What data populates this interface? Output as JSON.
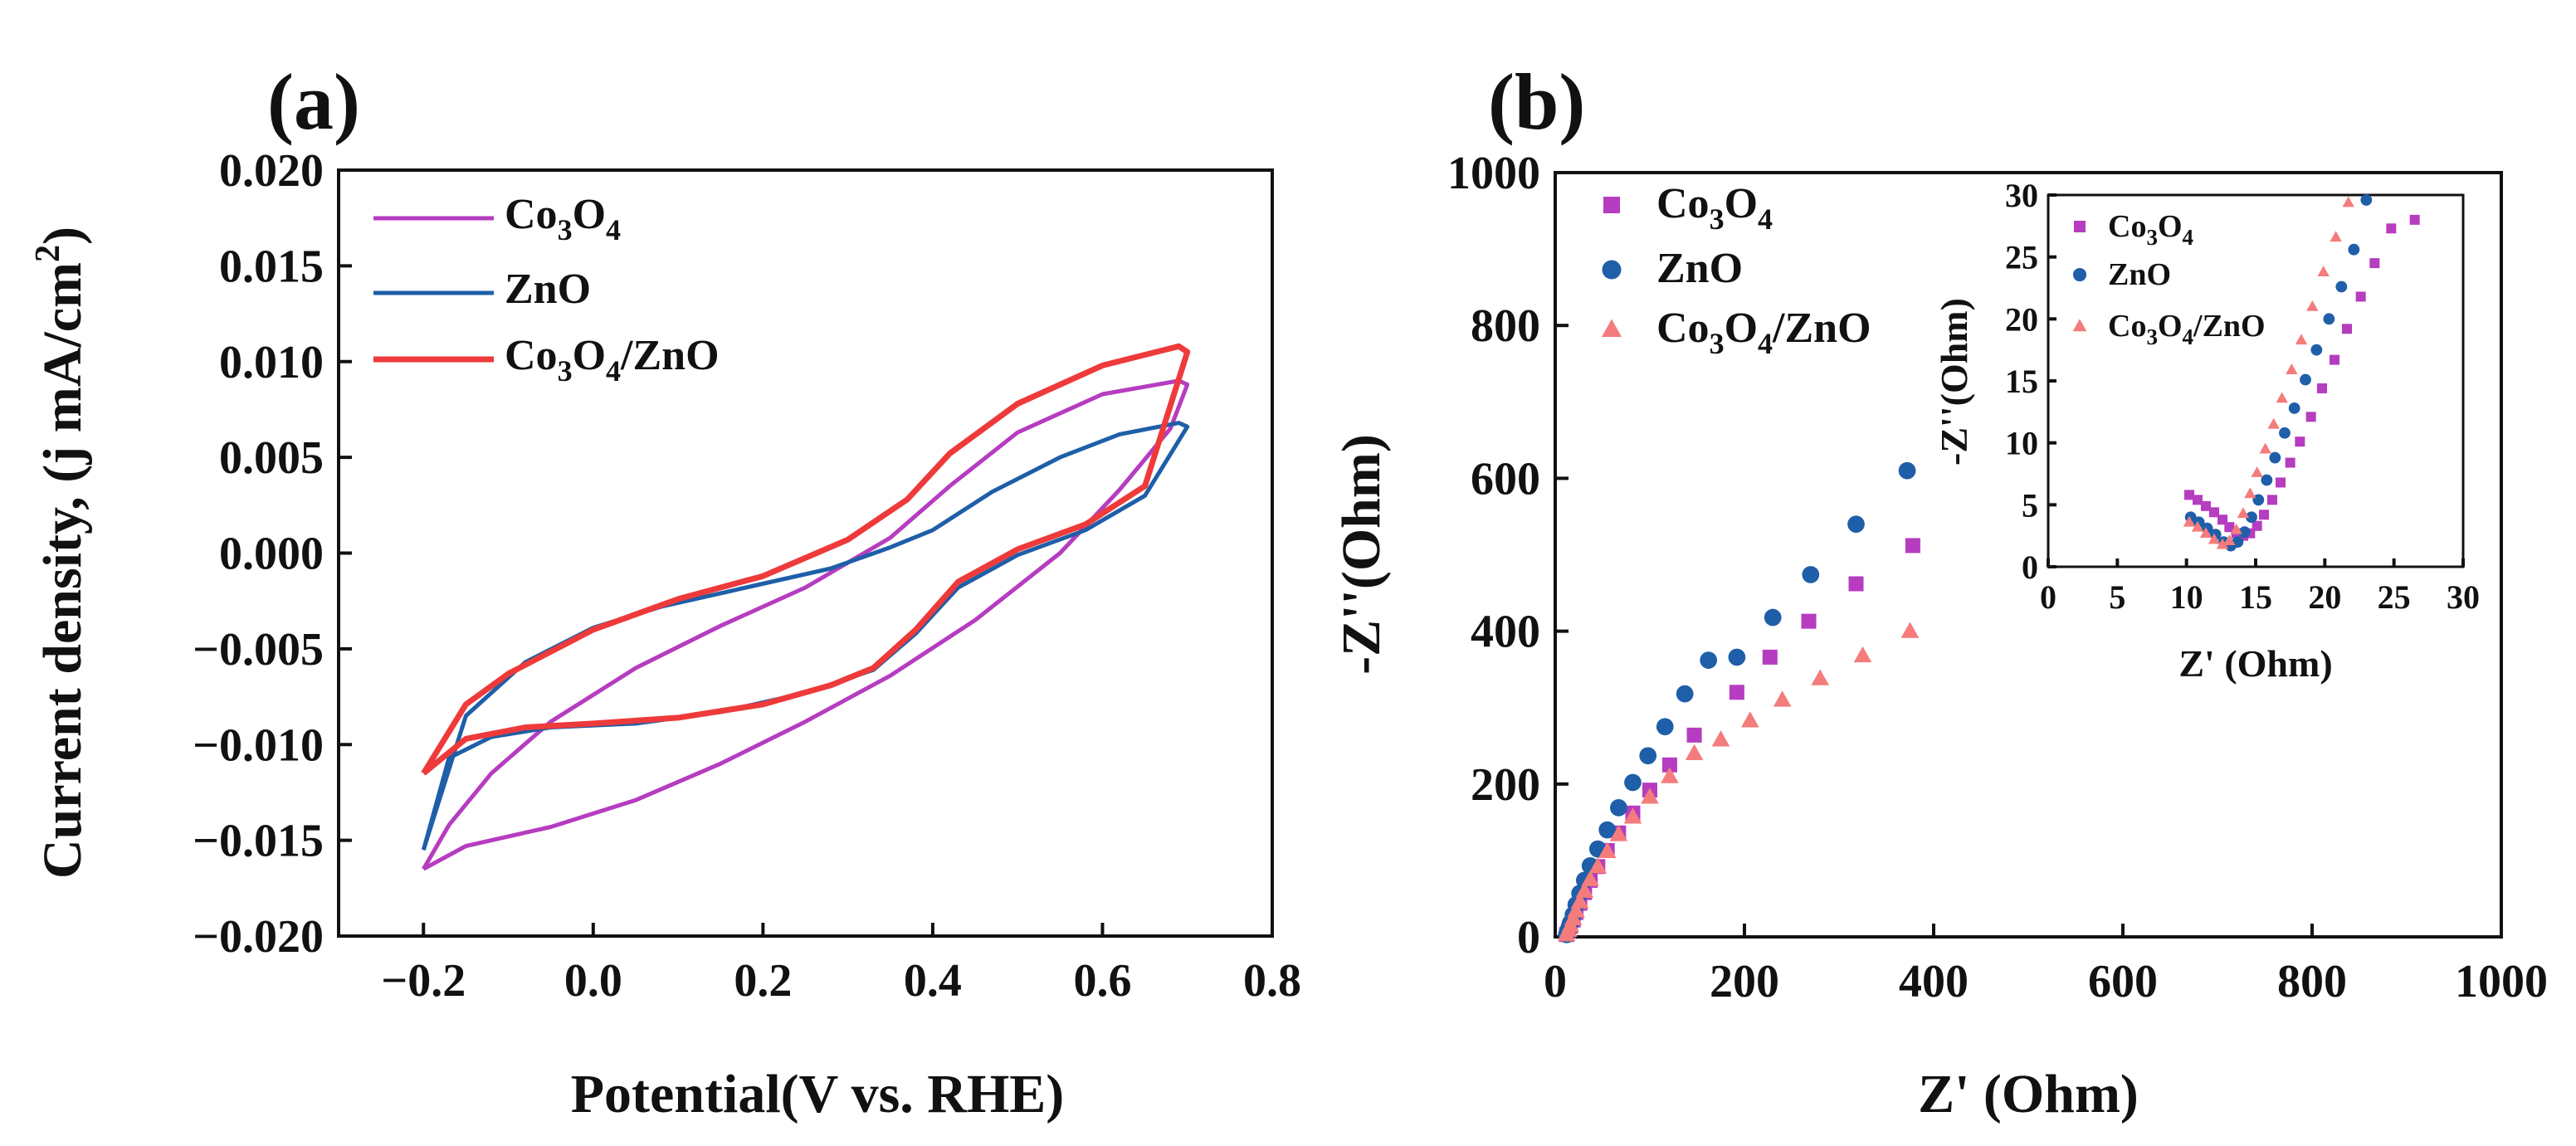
{
  "chart_data": [
    {
      "panel": "(a)",
      "type": "line",
      "title": "",
      "xlabel": "Potential(V vs. RHE)",
      "ylabel": "Current density, (j mA/cm2)",
      "ylabel_parts": [
        "Current density, (j mA/cm",
        "2",
        ")"
      ],
      "xlim": [
        -0.3,
        0.8
      ],
      "ylim": [
        -0.02,
        0.02
      ],
      "xticks": [
        -0.2,
        0.0,
        0.2,
        0.4,
        0.6,
        0.8
      ],
      "xtick_labels": [
        "−0.2",
        "0.0",
        "0.2",
        "0.4",
        "0.6",
        "0.8"
      ],
      "yticks": [
        -0.02,
        -0.015,
        -0.01,
        -0.005,
        0.0,
        0.005,
        0.01,
        0.015,
        0.02
      ],
      "ytick_labels": [
        "−0.020",
        "−0.015",
        "−0.010",
        "−0.005",
        "0.000",
        "0.005",
        "0.010",
        "0.015",
        "0.020"
      ],
      "legend_position": "top-left",
      "series": [
        {
          "name": "Co3O4",
          "parts": [
            [
              "Co",
              0
            ],
            [
              "3",
              1
            ],
            [
              "O",
              0
            ],
            [
              "4",
              1
            ]
          ],
          "color": "#b63cc0",
          "points": [
            [
              -0.2,
              -0.0165
            ],
            [
              -0.15,
              -0.0153
            ],
            [
              -0.05,
              -0.0143
            ],
            [
              0.05,
              -0.0129
            ],
            [
              0.15,
              -0.011
            ],
            [
              0.25,
              -0.0088
            ],
            [
              0.35,
              -0.0064
            ],
            [
              0.45,
              -0.0035
            ],
            [
              0.55,
              0.0
            ],
            [
              0.62,
              0.0033
            ],
            [
              0.68,
              0.0065
            ],
            [
              0.7,
              0.0088
            ],
            [
              0.69,
              0.009
            ],
            [
              0.6,
              0.0083
            ],
            [
              0.5,
              0.0063
            ],
            [
              0.42,
              0.0035
            ],
            [
              0.35,
              0.0008
            ],
            [
              0.25,
              -0.0018
            ],
            [
              0.15,
              -0.0038
            ],
            [
              0.05,
              -0.006
            ],
            [
              -0.05,
              -0.0088
            ],
            [
              -0.12,
              -0.0115
            ],
            [
              -0.17,
              -0.0142
            ],
            [
              -0.2,
              -0.0165
            ]
          ]
        },
        {
          "name": "ZnO",
          "parts": [
            [
              "ZnO",
              0
            ]
          ],
          "color": "#1f5ea8",
          "points": [
            [
              -0.2,
              -0.0155
            ],
            [
              -0.17,
              -0.0107
            ],
            [
              -0.12,
              -0.0096
            ],
            [
              -0.05,
              -0.0091
            ],
            [
              0.05,
              -0.0089
            ],
            [
              0.15,
              -0.0083
            ],
            [
              0.25,
              -0.0073
            ],
            [
              0.33,
              -0.0061
            ],
            [
              0.38,
              -0.0042
            ],
            [
              0.43,
              -0.0018
            ],
            [
              0.5,
              -0.0001
            ],
            [
              0.58,
              0.0012
            ],
            [
              0.65,
              0.003
            ],
            [
              0.7,
              0.0066
            ],
            [
              0.69,
              0.0068
            ],
            [
              0.62,
              0.0062
            ],
            [
              0.55,
              0.005
            ],
            [
              0.47,
              0.0032
            ],
            [
              0.4,
              0.0012
            ],
            [
              0.35,
              0.0003
            ],
            [
              0.28,
              -0.0008
            ],
            [
              0.18,
              -0.0018
            ],
            [
              0.08,
              -0.0028
            ],
            [
              0.0,
              -0.0039
            ],
            [
              -0.08,
              -0.0057
            ],
            [
              -0.15,
              -0.0085
            ],
            [
              -0.2,
              -0.0155
            ]
          ]
        },
        {
          "name": "Co3O4/ZnO",
          "parts": [
            [
              "Co",
              0
            ],
            [
              "3",
              1
            ],
            [
              "O",
              0
            ],
            [
              "4",
              1
            ],
            [
              "/ZnO",
              0
            ]
          ],
          "color": "#ee3a3a",
          "points": [
            [
              -0.2,
              -0.0115
            ],
            [
              -0.15,
              -0.0097
            ],
            [
              -0.08,
              -0.0091
            ],
            [
              0.0,
              -0.0089
            ],
            [
              0.1,
              -0.0086
            ],
            [
              0.2,
              -0.0079
            ],
            [
              0.28,
              -0.0069
            ],
            [
              0.33,
              -0.006
            ],
            [
              0.38,
              -0.004
            ],
            [
              0.43,
              -0.0015
            ],
            [
              0.5,
              0.0002
            ],
            [
              0.58,
              0.0015
            ],
            [
              0.65,
              0.0035
            ],
            [
              0.7,
              0.0105
            ],
            [
              0.69,
              0.0108
            ],
            [
              0.6,
              0.0098
            ],
            [
              0.5,
              0.0078
            ],
            [
              0.42,
              0.0052
            ],
            [
              0.37,
              0.0028
            ],
            [
              0.3,
              0.0007
            ],
            [
              0.2,
              -0.0012
            ],
            [
              0.1,
              -0.0024
            ],
            [
              0.0,
              -0.004
            ],
            [
              -0.1,
              -0.0063
            ],
            [
              -0.15,
              -0.0079
            ],
            [
              -0.2,
              -0.0115
            ]
          ]
        }
      ]
    },
    {
      "panel": "(b)",
      "type": "scatter",
      "title": "",
      "xlabel": "Z' (Ohm)",
      "ylabel": "-Z''(Ohm)",
      "xlim": [
        0,
        1000
      ],
      "ylim": [
        0,
        1000
      ],
      "xticks": [
        0,
        200,
        400,
        600,
        800,
        1000
      ],
      "xtick_labels": [
        "0",
        "200",
        "400",
        "600",
        "800",
        "1000"
      ],
      "yticks": [
        0,
        200,
        400,
        600,
        800,
        1000
      ],
      "ytick_labels": [
        "0",
        "200",
        "400",
        "600",
        "800",
        "1000"
      ],
      "legend_position": "top-left",
      "series": [
        {
          "name": "Co3O4",
          "parts": [
            [
              "Co",
              0
            ],
            [
              "3",
              1
            ],
            [
              "O",
              0
            ],
            [
              "4",
              1
            ]
          ],
          "marker": "square",
          "color": "#b63cc0",
          "points": [
            [
              12,
              3
            ],
            [
              14,
              8
            ],
            [
              16,
              14
            ],
            [
              19,
              22
            ],
            [
              22,
              32
            ],
            [
              26,
              44
            ],
            [
              31,
              58
            ],
            [
              37,
              74
            ],
            [
              45,
              92
            ],
            [
              55,
              113
            ],
            [
              67,
              136
            ],
            [
              82,
              162
            ],
            [
              100,
              192
            ],
            [
              121,
              225
            ],
            [
              147,
              264
            ],
            [
              192,
              320
            ],
            [
              227,
              366
            ],
            [
              268,
              413
            ],
            [
              318,
              462
            ],
            [
              378,
              512
            ]
          ]
        },
        {
          "name": "ZnO",
          "parts": [
            [
              "ZnO",
              0
            ]
          ],
          "marker": "circle",
          "color": "#1f5ea8",
          "points": [
            [
              12,
              3
            ],
            [
              14,
              10
            ],
            [
              16,
              18
            ],
            [
              19,
              29
            ],
            [
              22,
              42
            ],
            [
              26,
              57
            ],
            [
              31,
              74
            ],
            [
              37,
              93
            ],
            [
              45,
              115
            ],
            [
              55,
              140
            ],
            [
              67,
              169
            ],
            [
              82,
              202
            ],
            [
              98,
              237
            ],
            [
              116,
              275
            ],
            [
              137,
              318
            ],
            [
              162,
              362
            ],
            [
              192,
              366
            ],
            [
              230,
              418
            ],
            [
              270,
              474
            ],
            [
              318,
              540
            ],
            [
              372,
              610
            ]
          ]
        },
        {
          "name": "Co3O4/ZnO",
          "parts": [
            [
              "Co",
              0
            ],
            [
              "3",
              1
            ],
            [
              "O",
              0
            ],
            [
              "4",
              1
            ],
            [
              "/ZnO",
              0
            ]
          ],
          "marker": "triangle",
          "color": "#f47c7c",
          "points": [
            [
              12,
              3
            ],
            [
              14,
              9
            ],
            [
              16,
              15
            ],
            [
              19,
              24
            ],
            [
              22,
              34
            ],
            [
              26,
              46
            ],
            [
              31,
              60
            ],
            [
              37,
              75
            ],
            [
              45,
              92
            ],
            [
              55,
              112
            ],
            [
              67,
              134
            ],
            [
              82,
              157
            ],
            [
              100,
              183
            ],
            [
              121,
              210
            ],
            [
              147,
              240
            ],
            [
              175,
              258
            ],
            [
              206,
              283
            ],
            [
              240,
              310
            ],
            [
              280,
              338
            ],
            [
              325,
              368
            ],
            [
              375,
              400
            ]
          ]
        }
      ],
      "inset": {
        "xlabel": "Z' (Ohm)",
        "ylabel": "-Z''(Ohm)",
        "xlim": [
          0,
          30
        ],
        "ylim": [
          0,
          30
        ],
        "xticks": [
          0,
          5,
          10,
          15,
          20,
          25,
          30
        ],
        "xtick_labels": [
          "0",
          "5",
          "10",
          "15",
          "20",
          "25",
          "30"
        ],
        "yticks": [
          0,
          5,
          10,
          15,
          20,
          25,
          30
        ],
        "ytick_labels": [
          "0",
          "5",
          "10",
          "15",
          "20",
          "25",
          "30"
        ],
        "legend_position": "top-left",
        "series": [
          {
            "name": "Co3O4",
            "points": [
              [
                10.2,
                5.8
              ],
              [
                10.8,
                5.4
              ],
              [
                11.4,
                4.9
              ],
              [
                12.0,
                4.4
              ],
              [
                12.6,
                3.8
              ],
              [
                13.1,
                3.2
              ],
              [
                13.6,
                2.7
              ],
              [
                14.1,
                2.5
              ],
              [
                14.6,
                2.7
              ],
              [
                15.1,
                3.3
              ],
              [
                15.6,
                4.2
              ],
              [
                16.2,
                5.4
              ],
              [
                16.8,
                6.8
              ],
              [
                17.5,
                8.4
              ],
              [
                18.2,
                10.1
              ],
              [
                19.0,
                12.1
              ],
              [
                19.8,
                14.4
              ],
              [
                20.7,
                16.7
              ],
              [
                21.6,
                19.2
              ],
              [
                22.6,
                21.8
              ],
              [
                23.6,
                24.5
              ],
              [
                24.8,
                27.3
              ],
              [
                26.5,
                28.0
              ]
            ]
          },
          {
            "name": "ZnO",
            "points": [
              [
                10.3,
                4.0
              ],
              [
                10.9,
                3.6
              ],
              [
                11.5,
                3.1
              ],
              [
                12.1,
                2.6
              ],
              [
                12.7,
                2.0
              ],
              [
                13.2,
                1.7
              ],
              [
                13.7,
                2.0
              ],
              [
                14.2,
                2.8
              ],
              [
                14.7,
                4.0
              ],
              [
                15.2,
                5.4
              ],
              [
                15.8,
                7.0
              ],
              [
                16.4,
                8.8
              ],
              [
                17.1,
                10.8
              ],
              [
                17.8,
                12.8
              ],
              [
                18.6,
                15.1
              ],
              [
                19.4,
                17.5
              ],
              [
                20.3,
                20.0
              ],
              [
                21.2,
                22.6
              ],
              [
                22.1,
                25.6
              ],
              [
                23.0,
                29.6
              ]
            ]
          },
          {
            "name": "Co3O4/ZnO",
            "points": [
              [
                10.2,
                3.6
              ],
              [
                10.8,
                3.2
              ],
              [
                11.4,
                2.7
              ],
              [
                12.0,
                2.2
              ],
              [
                12.6,
                1.8
              ],
              [
                13.1,
                2.1
              ],
              [
                13.6,
                3.0
              ],
              [
                14.1,
                4.3
              ],
              [
                14.6,
                5.9
              ],
              [
                15.1,
                7.6
              ],
              [
                15.7,
                9.5
              ],
              [
                16.3,
                11.5
              ],
              [
                16.9,
                13.6
              ],
              [
                17.6,
                15.9
              ],
              [
                18.3,
                18.3
              ],
              [
                19.1,
                21.0
              ],
              [
                19.9,
                23.8
              ],
              [
                20.8,
                26.6
              ],
              [
                21.7,
                29.4
              ]
            ]
          }
        ]
      }
    }
  ]
}
